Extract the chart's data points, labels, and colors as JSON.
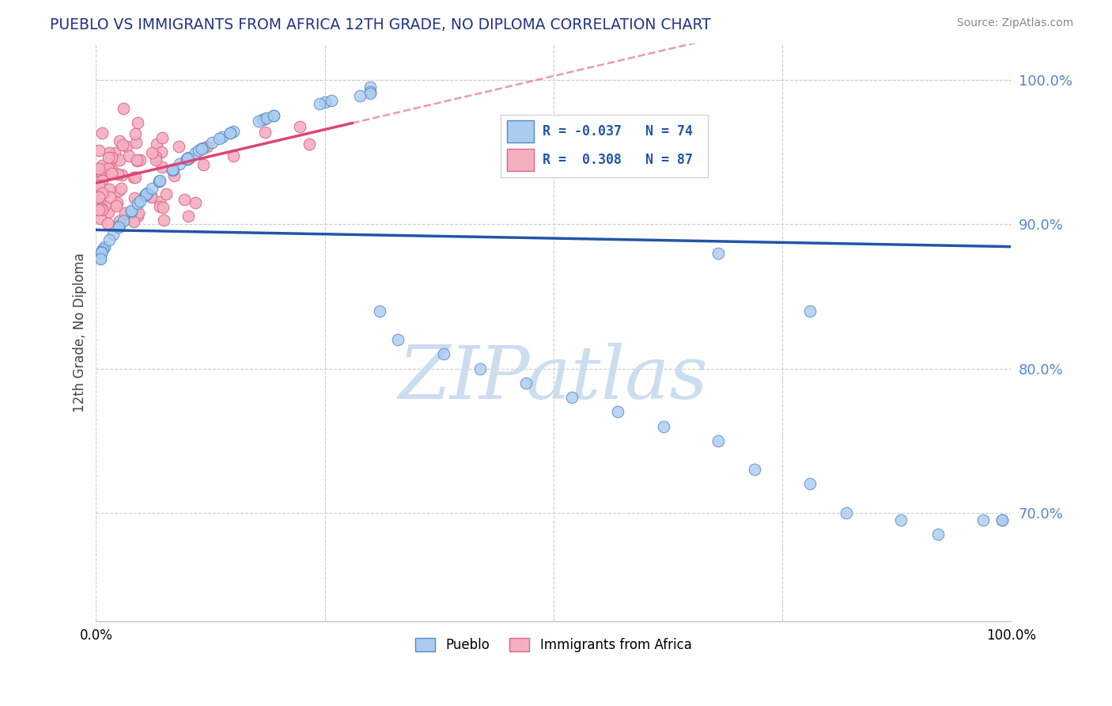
{
  "title": "PUEBLO VS IMMIGRANTS FROM AFRICA 12TH GRADE, NO DIPLOMA CORRELATION CHART",
  "source": "Source: ZipAtlas.com",
  "ylabel": "12th Grade, No Diploma",
  "xlim": [
    0.0,
    1.0
  ],
  "ylim": [
    0.625,
    1.025
  ],
  "yticks": [
    0.7,
    0.8,
    0.9,
    1.0
  ],
  "ytick_labels": [
    "70.0%",
    "80.0%",
    "90.0%",
    "100.0%"
  ],
  "xticks": [
    0.0,
    0.25,
    0.5,
    0.75,
    1.0
  ],
  "xtick_labels": [
    "0.0%",
    "",
    "",
    "",
    "100.0%"
  ],
  "pueblo_R": -0.037,
  "pueblo_N": 74,
  "africa_R": 0.308,
  "africa_N": 87,
  "pueblo_color": "#aaccee",
  "africa_color": "#f4b0c0",
  "pueblo_edge_color": "#5588cc",
  "africa_edge_color": "#dd6688",
  "pueblo_line_color": "#2255aa",
  "africa_line_color": "#dd4477",
  "watermark_color": "#ccddf0",
  "background_color": "#ffffff",
  "grid_color": "#cccccc",
  "legend_border_color": "#cccccc",
  "title_color": "#223388",
  "source_color": "#888888",
  "yticklabel_color": "#5588cc",
  "watermark_text": "ZIPatlas",
  "legend_text_color": "#2255aa"
}
